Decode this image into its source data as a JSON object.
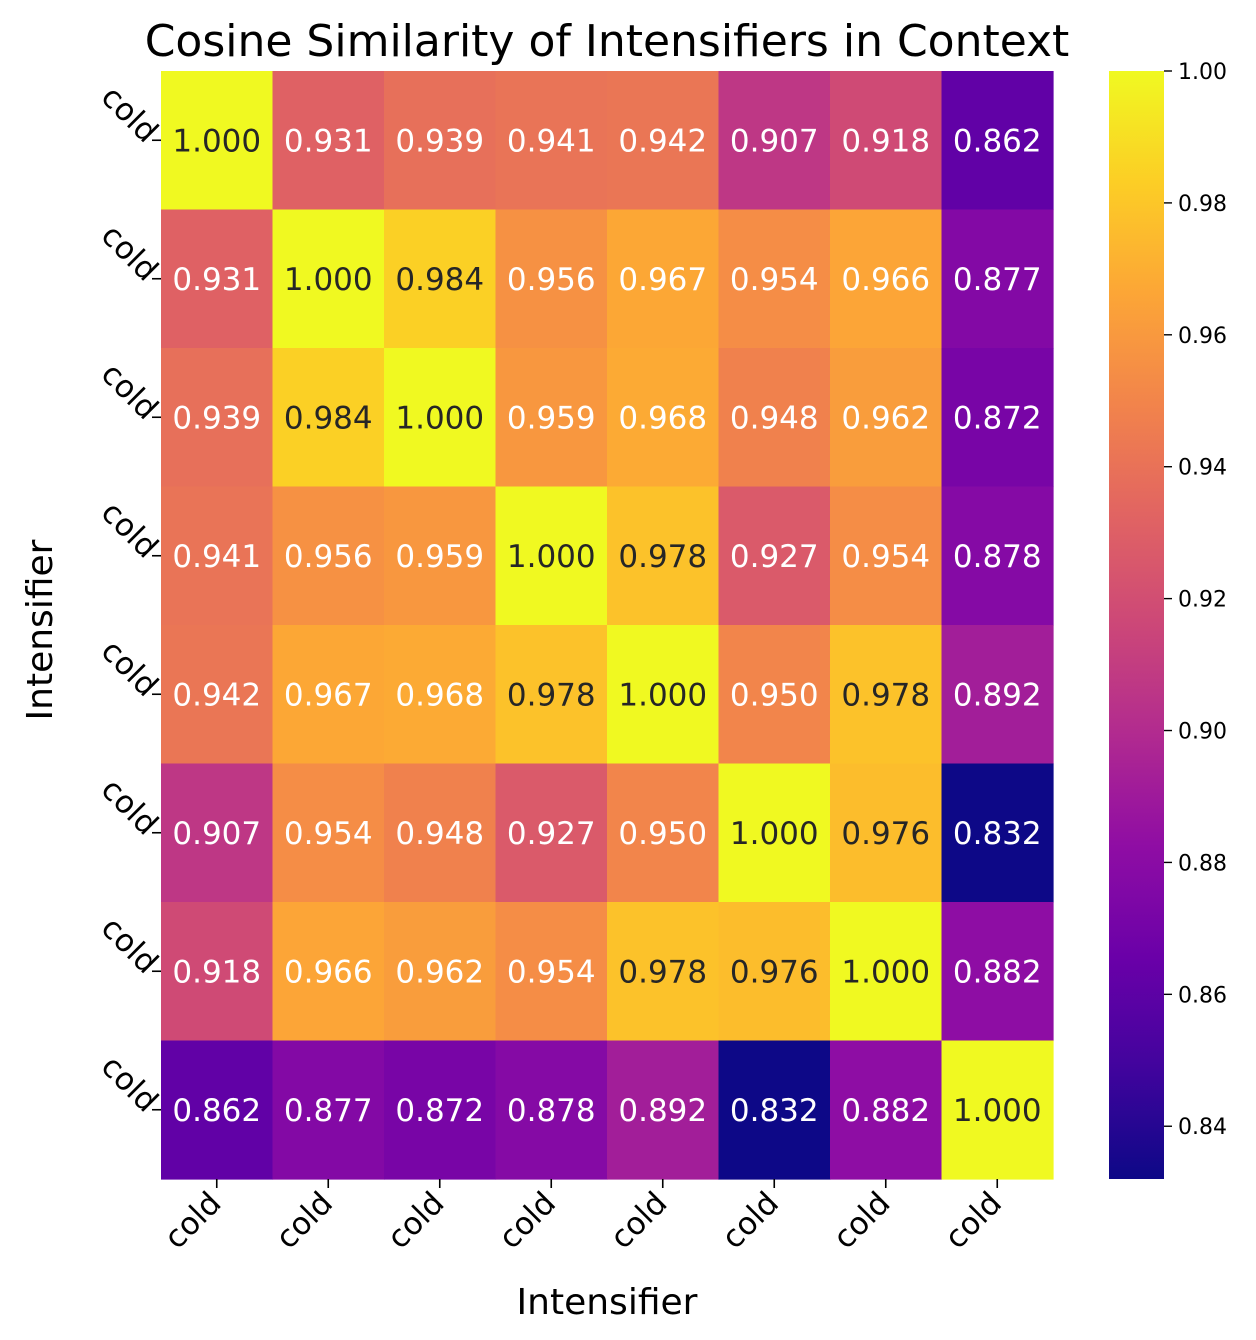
{
  "chart_data": {
    "type": "heatmap",
    "title": "Cosine Similarity of Intensifiers in Context",
    "xlabel": "Intensifier",
    "ylabel": "Intensifier",
    "x_categories": [
      "cold",
      "cold",
      "cold",
      "cold",
      "cold",
      "cold",
      "cold",
      "cold"
    ],
    "y_categories": [
      "cold",
      "cold",
      "cold",
      "cold",
      "cold",
      "cold",
      "cold",
      "cold"
    ],
    "values": [
      [
        1.0,
        0.931,
        0.939,
        0.941,
        0.942,
        0.907,
        0.918,
        0.862
      ],
      [
        0.931,
        1.0,
        0.984,
        0.956,
        0.967,
        0.954,
        0.966,
        0.877
      ],
      [
        0.939,
        0.984,
        1.0,
        0.959,
        0.968,
        0.948,
        0.962,
        0.872
      ],
      [
        0.941,
        0.956,
        0.959,
        1.0,
        0.978,
        0.927,
        0.954,
        0.878
      ],
      [
        0.942,
        0.967,
        0.968,
        0.978,
        1.0,
        0.95,
        0.978,
        0.892
      ],
      [
        0.907,
        0.954,
        0.948,
        0.927,
        0.95,
        1.0,
        0.976,
        0.832
      ],
      [
        0.918,
        0.966,
        0.962,
        0.954,
        0.978,
        0.976,
        1.0,
        0.882
      ],
      [
        0.862,
        0.877,
        0.872,
        0.878,
        0.892,
        0.832,
        0.882,
        1.0
      ]
    ],
    "value_format": "3 decimals",
    "colormap": "plasma",
    "colorbar": {
      "range": [
        0.832,
        1.0
      ],
      "ticks": [
        0.84,
        0.86,
        0.88,
        0.9,
        0.92,
        0.94,
        0.96,
        0.98,
        1.0
      ],
      "tick_labels": [
        "0.84",
        "0.86",
        "0.88",
        "0.90",
        "0.92",
        "0.94",
        "0.96",
        "0.98",
        "1.00"
      ],
      "placement": "right"
    }
  }
}
